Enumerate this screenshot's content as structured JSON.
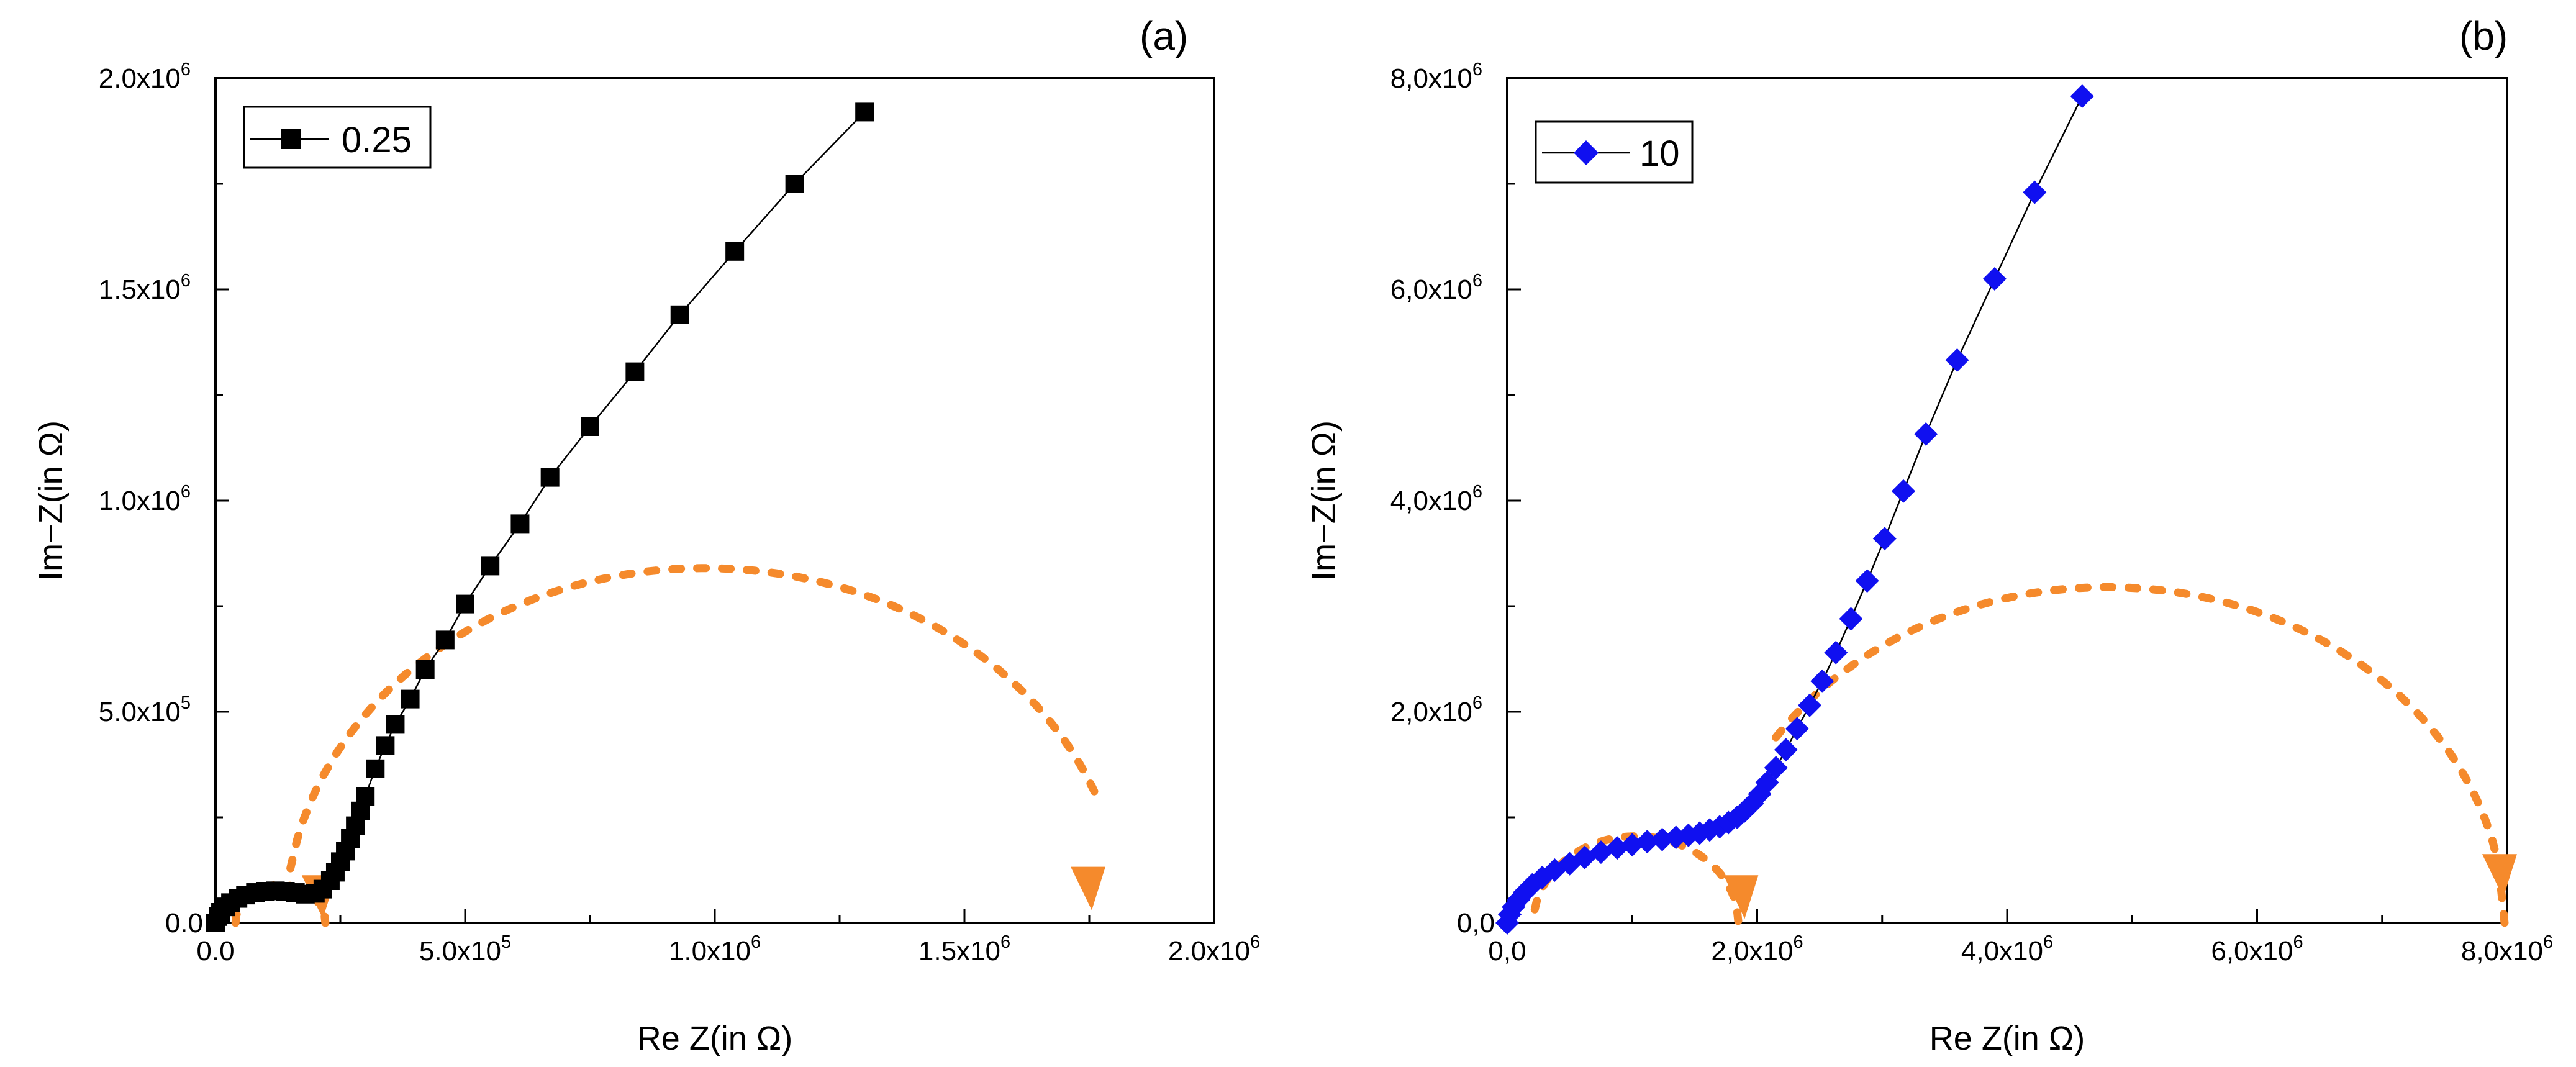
{
  "figure": {
    "panels": [
      {
        "letter": "(a)"
      },
      {
        "letter": "(b)"
      }
    ]
  },
  "colors": {
    "series_a": "#000000",
    "series_b": "#1010f0",
    "fit_arcs": "#f58a2c",
    "axes": "#000000"
  },
  "chart_data": [
    {
      "type": "scatter",
      "panel": "(a)",
      "title": "",
      "xlabel": "Re Z(in Ω)",
      "ylabel": "Im−Z(in Ω)",
      "xlim": [
        0,
        2000000
      ],
      "ylim": [
        0,
        2000000
      ],
      "xticks": [
        {
          "value": 0,
          "mantissa": "0.0",
          "exp": ""
        },
        {
          "value": 500000,
          "mantissa": "5.0x10",
          "exp": "5"
        },
        {
          "value": 1000000,
          "mantissa": "1.0x10",
          "exp": "6"
        },
        {
          "value": 1500000,
          "mantissa": "1.5x10",
          "exp": "6"
        },
        {
          "value": 2000000,
          "mantissa": "2.0x10",
          "exp": "6"
        }
      ],
      "yticks": [
        {
          "value": 0,
          "mantissa": "0.0",
          "exp": ""
        },
        {
          "value": 500000,
          "mantissa": "5.0x10",
          "exp": "5"
        },
        {
          "value": 1000000,
          "mantissa": "1.0x10",
          "exp": "6"
        },
        {
          "value": 1500000,
          "mantissa": "1.5x10",
          "exp": "6"
        },
        {
          "value": 2000000,
          "mantissa": "2.0x10",
          "exp": "6"
        }
      ],
      "legend": {
        "label": "0.25",
        "placement": "top-left",
        "marker": "square"
      },
      "series": [
        {
          "name": "0.25",
          "marker": "square",
          "color": "#000000",
          "x": [
            0,
            5000,
            10000,
            20000,
            30000,
            45000,
            60000,
            80000,
            100000,
            120000,
            140000,
            160000,
            180000,
            200000,
            215000,
            230000,
            240000,
            250000,
            260000,
            270000,
            280000,
            290000,
            300000,
            320000,
            340000,
            360000,
            390000,
            420000,
            460000,
            500000,
            550000,
            610000,
            670000,
            750000,
            840000,
            930000,
            1040000,
            1160000,
            1300000
          ],
          "y": [
            0,
            15000,
            25000,
            38000,
            48000,
            58000,
            66000,
            72000,
            75000,
            76000,
            75000,
            72000,
            68000,
            70000,
            80000,
            100000,
            120000,
            145000,
            170000,
            200000,
            230000,
            265000,
            300000,
            365000,
            420000,
            470000,
            530000,
            600000,
            670000,
            755000,
            845000,
            945000,
            1055000,
            1175000,
            1305000,
            1440000,
            1590000,
            1750000,
            1920000
          ]
        }
      ],
      "fit_arcs": [
        {
          "center": 130000,
          "radius": 90000,
          "start_x": 40000,
          "end_x": 220000
        },
        {
          "center": 980000,
          "radius": 840000,
          "start_x": 150000,
          "end_x": 1770000
        }
      ],
      "arrows": [
        {
          "x": 210000,
          "y": 10000
        },
        {
          "x": 1750000,
          "y": 30000
        }
      ]
    },
    {
      "type": "scatter",
      "panel": "(b)",
      "title": "",
      "xlabel": "Re Z(in Ω)",
      "ylabel": "Im−Z(in Ω)",
      "xlim": [
        0,
        8000000
      ],
      "ylim": [
        0,
        8000000
      ],
      "xticks": [
        {
          "value": 0,
          "mantissa": "0,0",
          "exp": ""
        },
        {
          "value": 2000000,
          "mantissa": "2,0x10",
          "exp": "6"
        },
        {
          "value": 4000000,
          "mantissa": "4,0x10",
          "exp": "6"
        },
        {
          "value": 6000000,
          "mantissa": "6,0x10",
          "exp": "6"
        },
        {
          "value": 8000000,
          "mantissa": "8,0x10",
          "exp": "6"
        }
      ],
      "yticks": [
        {
          "value": 0,
          "mantissa": "0,0",
          "exp": ""
        },
        {
          "value": 2000000,
          "mantissa": "2,0x10",
          "exp": "6"
        },
        {
          "value": 4000000,
          "mantissa": "4,0x10",
          "exp": "6"
        },
        {
          "value": 6000000,
          "mantissa": "6,0x10",
          "exp": "6"
        },
        {
          "value": 8000000,
          "mantissa": "8,0x10",
          "exp": "6"
        }
      ],
      "legend": {
        "label": "10",
        "placement": "top-left",
        "marker": "diamond"
      },
      "series": [
        {
          "name": "10",
          "marker": "diamond",
          "color": "#1010f0",
          "x": [
            0,
            20000,
            50000,
            90000,
            140000,
            200000,
            280000,
            380000,
            500000,
            620000,
            750000,
            880000,
            1000000,
            1120000,
            1240000,
            1350000,
            1450000,
            1540000,
            1620000,
            1700000,
            1770000,
            1840000,
            1900000,
            1960000,
            2020000,
            2080000,
            2150000,
            2230000,
            2320000,
            2420000,
            2520000,
            2630000,
            2750000,
            2880000,
            3020000,
            3170000,
            3350000,
            3600000,
            3900000,
            4220000,
            4600000
          ],
          "y": [
            0,
            80000,
            150000,
            220000,
            290000,
            360000,
            430000,
            500000,
            560000,
            620000,
            670000,
            710000,
            740000,
            770000,
            790000,
            810000,
            830000,
            850000,
            880000,
            910000,
            950000,
            1000000,
            1060000,
            1130000,
            1220000,
            1330000,
            1470000,
            1640000,
            1840000,
            2060000,
            2290000,
            2560000,
            2880000,
            3240000,
            3640000,
            4090000,
            4630000,
            5330000,
            6100000,
            6920000,
            7830000
          ]
        }
      ],
      "fit_arcs": [
        {
          "center": 1030000,
          "radius": 820000,
          "start_x": 220000,
          "end_x": 1850000
        },
        {
          "center": 4800000,
          "radius": 3180000,
          "start_x": 2150000,
          "end_x": 7980000
        }
      ],
      "arrows": [
        {
          "x": 1880000,
          "y": 40000
        },
        {
          "x": 7950000,
          "y": 240000
        }
      ]
    }
  ]
}
